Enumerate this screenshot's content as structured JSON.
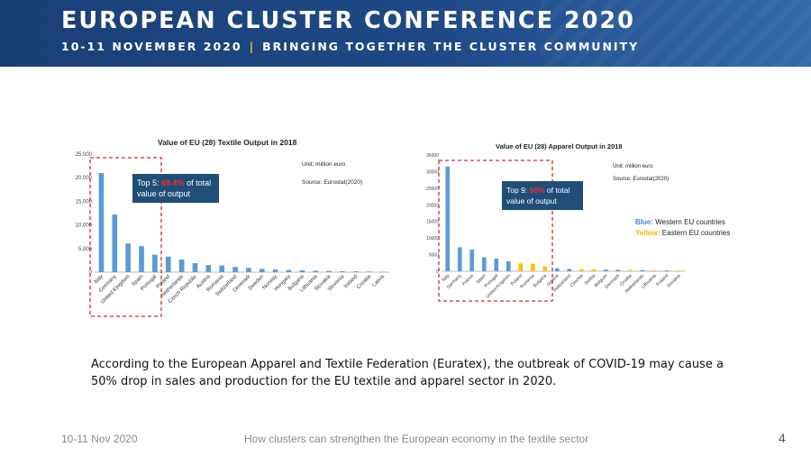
{
  "banner": {
    "title": "EUROPEAN CLUSTER CONFERENCE 2020",
    "date": "10-11 NOVEMBER 2020",
    "separator": "|",
    "tagline": "BRINGING TOGETHER THE CLUSTER COMMUNITY"
  },
  "callouts": {
    "textile": {
      "prefix": "Top 5: ",
      "highlight": "69.4%",
      "suffix": " of total value of output"
    },
    "apparel": {
      "prefix": "Top 9: ",
      "highlight": "90%",
      "suffix": " of total value of output"
    }
  },
  "chart_data": [
    {
      "type": "bar",
      "title": "Value of EU (28) Textile Output in 2018",
      "unit": "Unit: million euro",
      "source": "Source: Eurostat(2020)",
      "categories": [
        "Italy",
        "Germany",
        "United Kingdom",
        "Spain",
        "Portugal",
        "Poland",
        "Netherlands",
        "Czech Republic",
        "Austria",
        "Romania",
        "Switzerland",
        "Denmark",
        "Sweden",
        "Norway",
        "Hungary",
        "Bulgaria",
        "Lithuania",
        "Slovakia",
        "Slovenia",
        "Ireland",
        "Croatia",
        "Latvia"
      ],
      "values": [
        21000,
        12200,
        6100,
        5500,
        3700,
        3300,
        2700,
        1900,
        1500,
        1400,
        1100,
        900,
        700,
        550,
        450,
        380,
        300,
        250,
        200,
        170,
        130,
        90
      ],
      "yticks": [
        "0",
        "5,000",
        "10,000",
        "15,000",
        "20,000",
        "25,000"
      ],
      "ylim": [
        0,
        25000
      ],
      "color": "#5b9bd5",
      "highlight_box": "Top 5"
    },
    {
      "type": "bar",
      "title": "Value of EU (28) Apparel Output in 2018",
      "unit": "Unit: million euro",
      "source": "Source: Eurostat(2020)",
      "categories": [
        "Italy",
        "Germany",
        "France",
        "Spain",
        "Portugal",
        "United Kingdom",
        "Poland",
        "Romania",
        "Bulgaria",
        "Greece",
        "Switzerland",
        "Czechia",
        "Serbia",
        "Belgium",
        "Denmark",
        "Croatia",
        "Netherlands",
        "Lithuania",
        "Finland",
        "Slovakia"
      ],
      "values": [
        31500,
        7200,
        6500,
        4200,
        3800,
        3000,
        2400,
        2300,
        1500,
        900,
        700,
        600,
        600,
        500,
        450,
        400,
        350,
        300,
        250,
        200
      ],
      "bar_colors": [
        "#5b9bd5",
        "#5b9bd5",
        "#5b9bd5",
        "#5b9bd5",
        "#5b9bd5",
        "#5b9bd5",
        "#ffc000",
        "#ffc000",
        "#ffc000",
        "#5b9bd5",
        "#5b9bd5",
        "#ffc000",
        "#ffc000",
        "#5b9bd5",
        "#5b9bd5",
        "#ffc000",
        "#5b9bd5",
        "#ffc000",
        "#5b9bd5",
        "#ffc000"
      ],
      "yticks": [
        "0",
        "5000",
        "10000",
        "15000",
        "20000",
        "25000",
        "30000",
        "35000"
      ],
      "ylim": [
        0,
        35000
      ],
      "highlight_box": "Top 9",
      "legend": [
        {
          "label": "Blue:",
          "text": " Western EU countries",
          "color": "#4a86c8"
        },
        {
          "label": "Yellow:",
          "text": " Eastern EU countries",
          "color": "#f5b400"
        }
      ]
    }
  ],
  "body_text": "According to the European Apparel and Textile Federation (Euratex), the outbreak of COVID-19 may cause a 50% drop in sales and production for the EU textile and apparel sector in 2020.",
  "footer": {
    "date": "10-11 Nov 2020",
    "caption": "How clusters can strengthen the European economy in the textile sector",
    "page": "4"
  }
}
